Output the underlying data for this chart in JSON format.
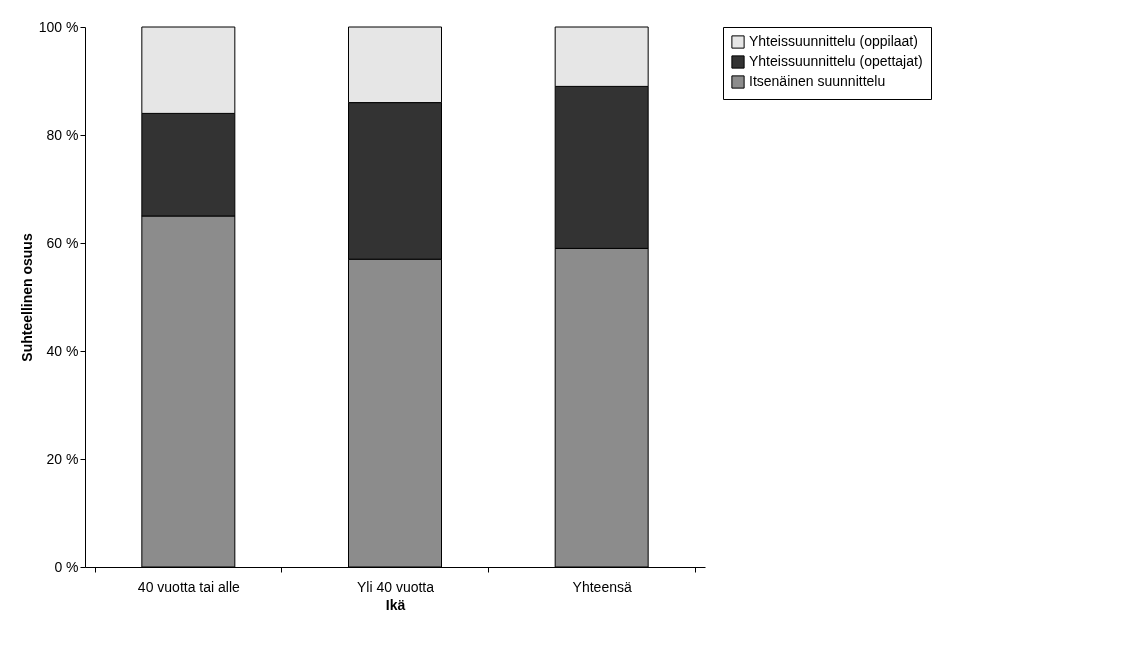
{
  "chart_data": {
    "type": "bar",
    "stacked": true,
    "xlabel": "Ikä",
    "ylabel": "Suhteellinen osuus",
    "categories": [
      "40 vuotta tai alle",
      "Yli 40 vuotta",
      "Yhteensä"
    ],
    "series": [
      {
        "name": "Itsenäinen suunnittelu",
        "color": "#8c8c8c",
        "values": [
          65,
          57,
          59
        ]
      },
      {
        "name": "Yhteissuunnittelu (opettajat)",
        "color": "#333333",
        "values": [
          19,
          29,
          30
        ]
      },
      {
        "name": "Yhteissuunnittelu (oppilaat)",
        "color": "#e6e6e6",
        "values": [
          16,
          14,
          11
        ]
      }
    ],
    "ylim": [
      0,
      100
    ],
    "yticks": [
      {
        "value": 0,
        "label": "0 %"
      },
      {
        "value": 20,
        "label": "20 %"
      },
      {
        "value": 40,
        "label": "40 %"
      },
      {
        "value": 60,
        "label": "60 %"
      },
      {
        "value": 80,
        "label": "80 %"
      },
      {
        "value": 100,
        "label": "100 %"
      }
    ],
    "grid": false,
    "legend": "right"
  }
}
